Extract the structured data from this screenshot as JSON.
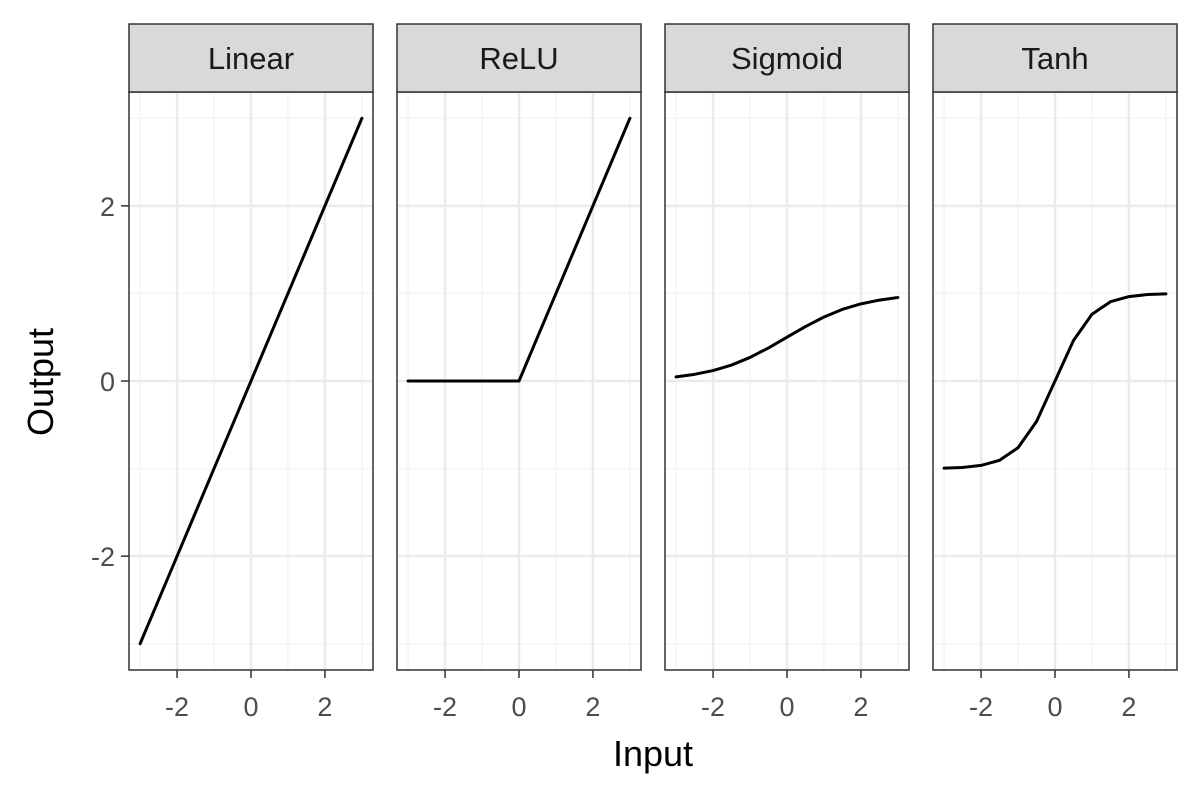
{
  "chart_data": {
    "type": "line",
    "xlabel": "Input",
    "ylabel": "Output",
    "facet_layout": "1 row x 4 columns, shared x and y axes",
    "grid": true,
    "legend": "none",
    "xlim": [
      -3.3,
      3.3
    ],
    "ylim": [
      -3.3,
      3.3
    ],
    "x_major_ticks": [
      -2,
      0,
      2
    ],
    "x_minor_ticks": [
      -3,
      -1,
      1,
      3
    ],
    "y_major_ticks": [
      -2,
      0,
      2
    ],
    "y_minor_ticks": [
      -3,
      -1,
      1,
      3
    ],
    "x_tick_labels": [
      "-2",
      "0",
      "2"
    ],
    "y_tick_labels": [
      "-2",
      "0",
      "2"
    ],
    "colors": {
      "line": "#000000",
      "strip_fill": "#d9d9d9",
      "panel_border": "#333333",
      "grid_major": "#ebebeb",
      "grid_minor": "#f5f5f5",
      "tick_label": "#4d4d4d"
    },
    "facets": [
      {
        "label": "Linear",
        "x": [
          -3,
          -2.5,
          -2,
          -1.5,
          -1,
          -0.5,
          0,
          0.5,
          1,
          1.5,
          2,
          2.5,
          3
        ],
        "y": [
          -3,
          -2.5,
          -2,
          -1.5,
          -1,
          -0.5,
          0,
          0.5,
          1,
          1.5,
          2,
          2.5,
          3
        ]
      },
      {
        "label": "ReLU",
        "x": [
          -3,
          -2.5,
          -2,
          -1.5,
          -1,
          -0.5,
          0,
          0.5,
          1,
          1.5,
          2,
          2.5,
          3
        ],
        "y": [
          0,
          0,
          0,
          0,
          0,
          0,
          0,
          0.5,
          1,
          1.5,
          2,
          2.5,
          3
        ]
      },
      {
        "label": "Sigmoid",
        "x": [
          -3,
          -2.5,
          -2,
          -1.5,
          -1,
          -0.5,
          0,
          0.5,
          1,
          1.5,
          2,
          2.5,
          3
        ],
        "y": [
          0.047,
          0.076,
          0.119,
          0.182,
          0.269,
          0.378,
          0.5,
          0.622,
          0.731,
          0.818,
          0.881,
          0.924,
          0.953
        ]
      },
      {
        "label": "Tanh",
        "x": [
          -3,
          -2.5,
          -2,
          -1.5,
          -1,
          -0.5,
          0,
          0.5,
          1,
          1.5,
          2,
          2.5,
          3
        ],
        "y": [
          -0.995,
          -0.987,
          -0.964,
          -0.905,
          -0.762,
          -0.462,
          0,
          0.462,
          0.762,
          0.905,
          0.964,
          0.987,
          0.995
        ]
      }
    ]
  }
}
